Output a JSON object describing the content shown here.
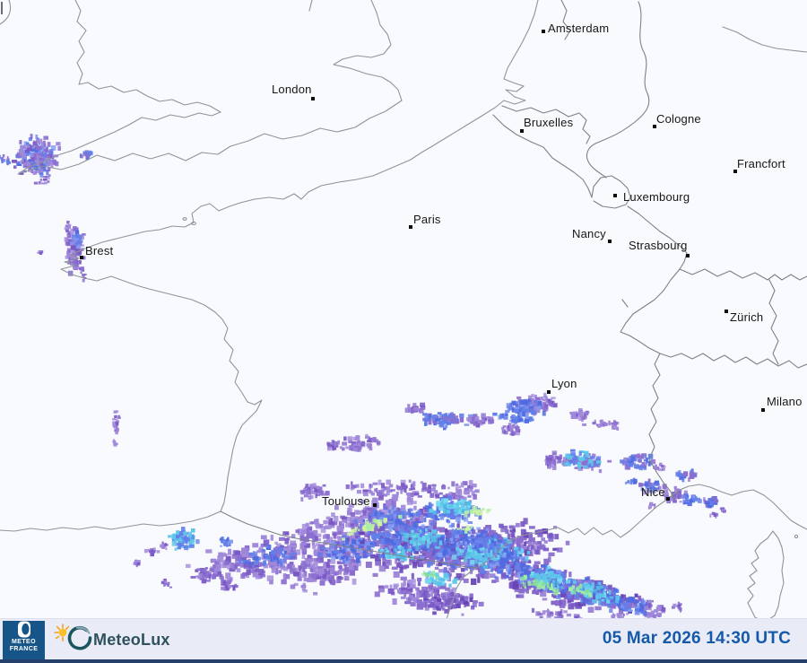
{
  "map": {
    "cities": [
      {
        "label": "Amsterdam"
      },
      {
        "label": "London"
      },
      {
        "label": "Bruxelles"
      },
      {
        "label": "Cologne"
      },
      {
        "label": "Francfort"
      },
      {
        "label": "Luxembourg"
      },
      {
        "label": "Paris"
      },
      {
        "label": "Nancy"
      },
      {
        "label": "Strasbourg"
      },
      {
        "label": "Brest"
      },
      {
        "label": "Zürich"
      },
      {
        "label": "Lyon"
      },
      {
        "label": "Milano"
      },
      {
        "label": "Toulouse"
      },
      {
        "label": "Nice"
      }
    ],
    "precip_colors": {
      "rain_light": "#9b82d8",
      "rain_light2": "#8567cd",
      "rain_moderate": "#5b79e8",
      "rain_strong": "#55c4e8",
      "rain_heavy": "#9ceaa6",
      "rain_intense": "#cdf3a0"
    }
  },
  "footer": {
    "meteofrance_logo_line1": "METEO",
    "meteofrance_logo_line2": "FRANCE",
    "meteolux_brand": "MeteoLux",
    "timestamp": "05 Mar 2026 14:30 UTC"
  }
}
